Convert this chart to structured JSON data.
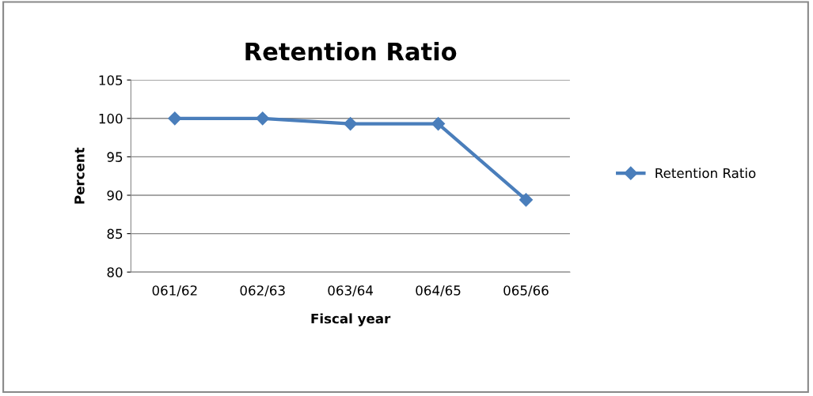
{
  "chart_data": {
    "type": "line",
    "title": "Retention Ratio",
    "xlabel": "Fiscal year",
    "ylabel": "Percent",
    "categories": [
      "061/62",
      "062/63",
      "063/64",
      "064/65",
      "065/66"
    ],
    "series": [
      {
        "name": "Retention Ratio",
        "color": "#4a7ebb",
        "values": [
          100,
          100,
          99.3,
          99.3,
          89.4
        ]
      }
    ],
    "ylim": [
      80,
      105
    ],
    "yticks": [
      80,
      85,
      90,
      95,
      100,
      105
    ],
    "grid": "y",
    "legend": "right",
    "marker": "diamond",
    "line_style": "solid"
  }
}
